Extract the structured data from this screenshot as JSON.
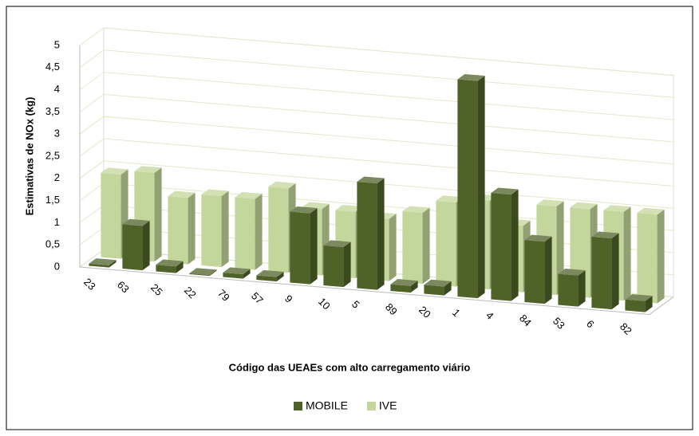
{
  "chart_data": {
    "type": "bar3d",
    "x_label": "Código das UEAEs com alto carregamento viário",
    "y_label": "Estimativas de NOx (kg)",
    "categories": [
      "23",
      "63",
      "25",
      "22",
      "79",
      "57",
      "9",
      "10",
      "5",
      "89",
      "20",
      "1",
      "4",
      "84",
      "53",
      "6",
      "82"
    ],
    "series": [
      {
        "name": "MOBILE",
        "color": "#4f6228",
        "values": [
          0.05,
          1.0,
          0.15,
          0.02,
          0.1,
          0.1,
          1.6,
          0.9,
          2.4,
          0.15,
          0.2,
          4.9,
          2.4,
          1.4,
          0.7,
          1.6,
          0.25
        ]
      },
      {
        "name": "IVE",
        "color": "#c3d69b",
        "values": [
          1.9,
          2.0,
          1.5,
          1.6,
          1.6,
          1.9,
          1.5,
          1.5,
          1.4,
          1.6,
          1.9,
          2.0,
          1.5,
          2.0,
          2.0,
          2.0,
          2.0
        ]
      }
    ],
    "ylim": [
      0,
      5
    ],
    "yticks": [
      0,
      {
        "value": 0.5,
        "label": "0,5"
      },
      1,
      {
        "value": 1.5,
        "label": "1,5"
      },
      2,
      {
        "value": 2.5,
        "label": "2,5"
      },
      3,
      {
        "value": 3.5,
        "label": "3,5"
      },
      4,
      {
        "value": 4.5,
        "label": "4,5"
      },
      5
    ],
    "grid": true,
    "legend": "bottom"
  }
}
